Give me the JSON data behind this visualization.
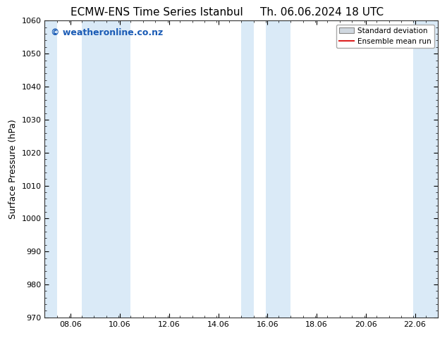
{
  "title_left": "ECMW-ENS Time Series Istanbul",
  "title_right": "Th. 06.06.2024 18 UTC",
  "ylabel": "Surface Pressure (hPa)",
  "xlabel": "",
  "ylim": [
    970,
    1060
  ],
  "yticks": [
    970,
    980,
    990,
    1000,
    1010,
    1020,
    1030,
    1040,
    1050,
    1060
  ],
  "xlim": [
    7.0,
    23.0
  ],
  "xticks": [
    8.06,
    10.06,
    12.06,
    14.06,
    16.06,
    18.06,
    20.06,
    22.06
  ],
  "xtick_labels": [
    "08.06",
    "10.06",
    "12.06",
    "14.06",
    "16.06",
    "18.06",
    "20.06",
    "22.06"
  ],
  "background_color": "#ffffff",
  "plot_bg_color": "#ffffff",
  "shaded_bands": [
    {
      "x_start": 7.0,
      "x_end": 7.5
    },
    {
      "x_start": 8.5,
      "x_end": 10.5
    },
    {
      "x_start": 15.0,
      "x_end": 15.5
    },
    {
      "x_start": 16.0,
      "x_end": 17.0
    },
    {
      "x_start": 22.0,
      "x_end": 23.0
    }
  ],
  "band_color": "#daeaf7",
  "watermark_text": "© weatheronline.co.nz",
  "watermark_color": "#1a5bb5",
  "watermark_fontsize": 9,
  "legend_std_label": "Standard deviation",
  "legend_mean_label": "Ensemble mean run",
  "legend_std_facecolor": "#d0d8e0",
  "legend_std_edgecolor": "#888888",
  "legend_mean_color": "#dd2222",
  "title_fontsize": 11,
  "tick_fontsize": 8,
  "ylabel_fontsize": 9
}
